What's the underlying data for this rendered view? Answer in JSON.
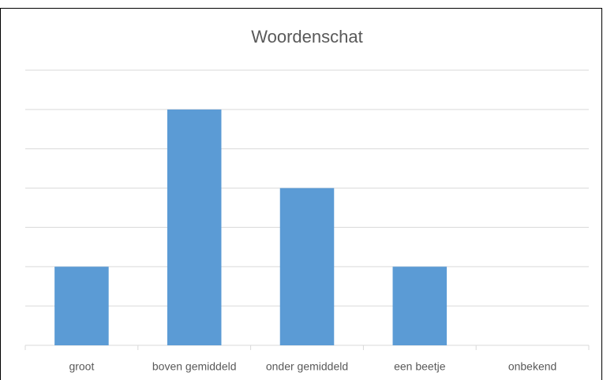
{
  "chart_data": {
    "type": "bar",
    "title": "Woordenschat",
    "categories": [
      "groot",
      "boven gemiddeld",
      "onder gemiddeld",
      "een beetje",
      "onbekend"
    ],
    "values": [
      2,
      6,
      4,
      2,
      0
    ],
    "color": "#5b9bd5",
    "ylim": [
      0,
      7
    ],
    "yticks": [
      0,
      1,
      2,
      3,
      4,
      5,
      6,
      7
    ],
    "grid": true
  }
}
